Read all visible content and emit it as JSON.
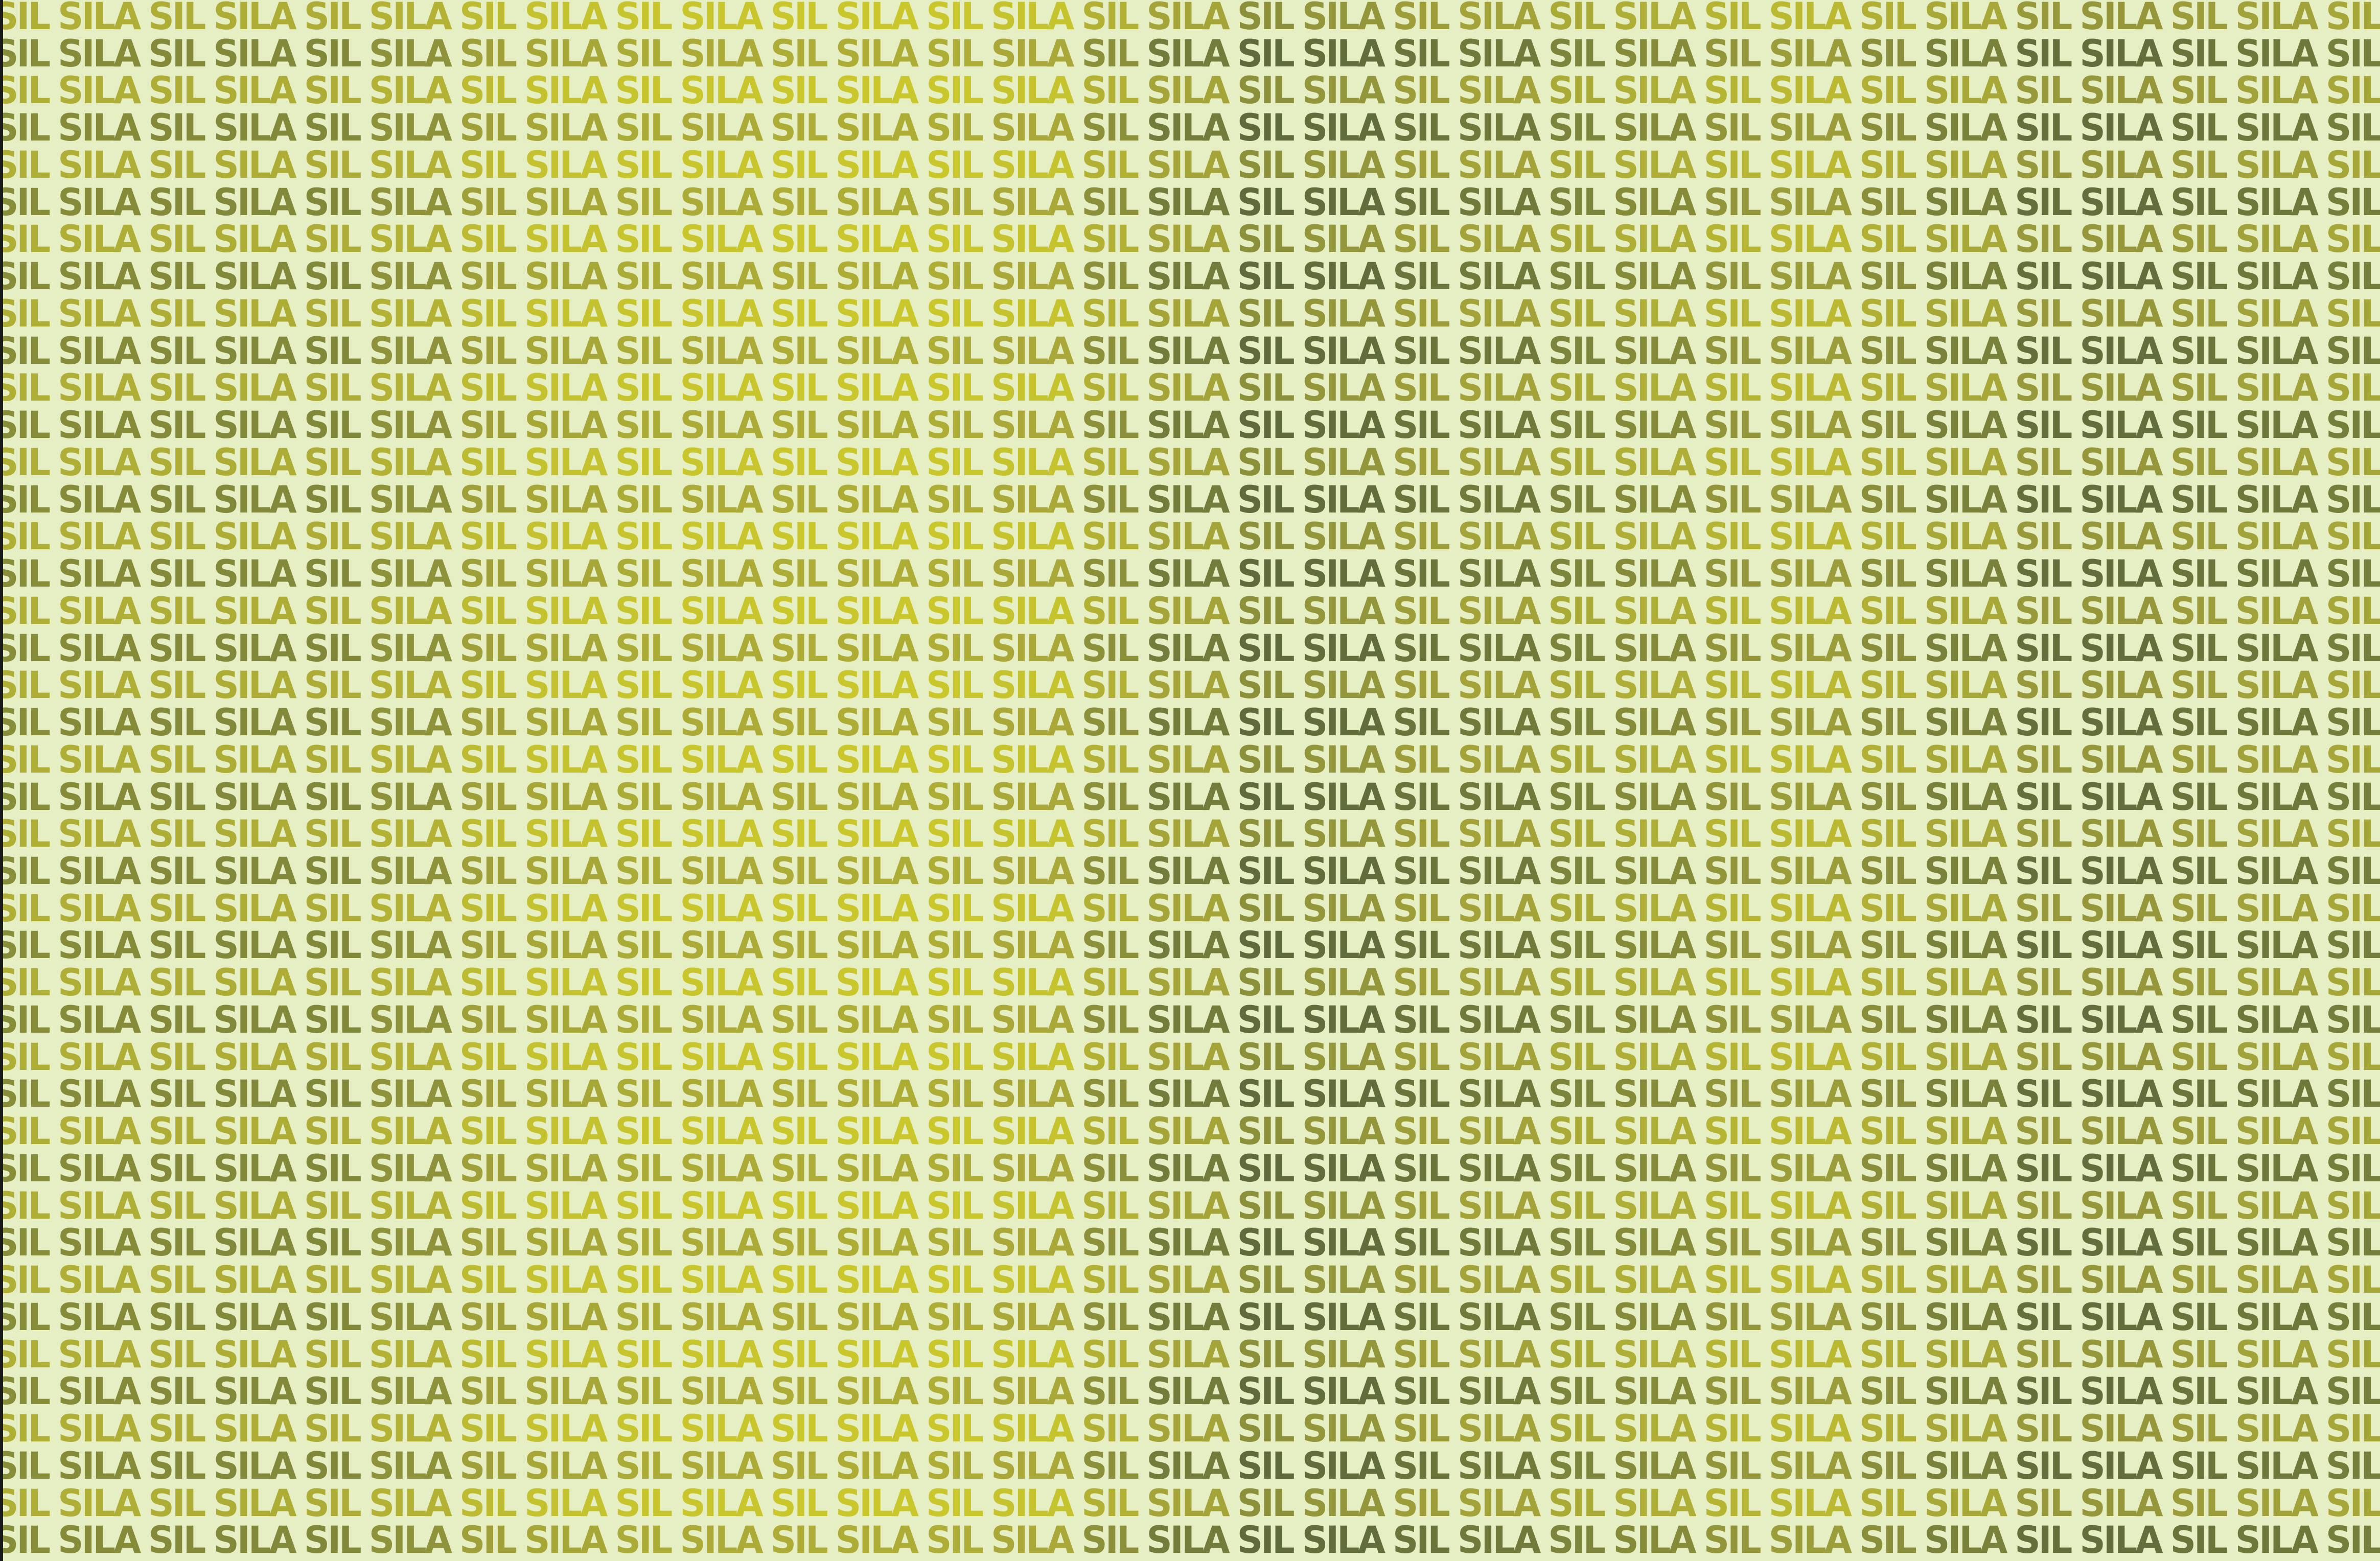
{
  "pattern": {
    "words": [
      "SIL",
      "SILA"
    ],
    "colors": {
      "background": "#e6efc4",
      "bright_yellow": "#c9c72c",
      "olive": "#a3a33a",
      "dark_olive": "#5f6b3b"
    }
  }
}
